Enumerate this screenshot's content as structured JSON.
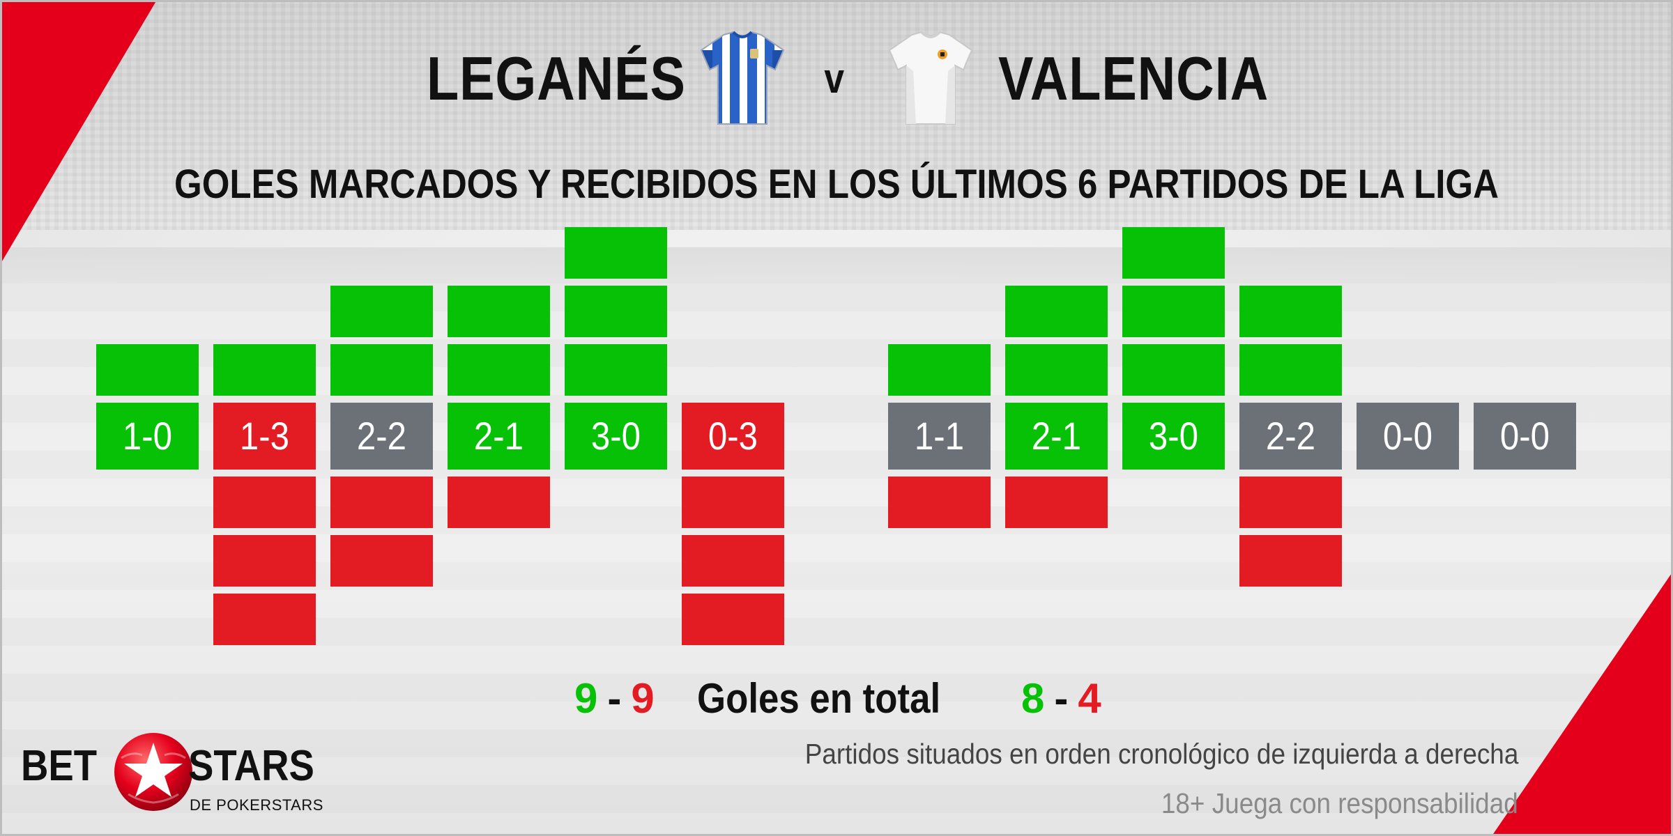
{
  "header": {
    "home_team": "LEGANÉS",
    "away_team": "VALENCIA",
    "vs": "v",
    "subtitle": "GOLES MARCADOS Y RECIBIDOS EN LOS ÚLTIMOS 6 PARTIDOS DE LA LIGA"
  },
  "colors": {
    "scored": "#06c106",
    "conceded": "#e31b23",
    "draw": "#6b7176",
    "accent": "#e4001b"
  },
  "chart_data": [
    {
      "type": "bar",
      "team": "LEGANÉS",
      "categories": [
        "1-0",
        "1-3",
        "2-2",
        "2-1",
        "3-0",
        "0-3"
      ],
      "series": [
        {
          "key": "scored",
          "values": [
            1,
            1,
            2,
            2,
            3,
            0
          ]
        },
        {
          "key": "conceded",
          "values": [
            0,
            3,
            2,
            1,
            0,
            3
          ]
        }
      ],
      "results": [
        "win",
        "loss",
        "draw",
        "win",
        "win",
        "loss"
      ],
      "totals": {
        "scored": "9",
        "conceded": "9"
      }
    },
    {
      "type": "bar",
      "team": "VALENCIA",
      "categories": [
        "1-1",
        "2-1",
        "3-0",
        "2-2",
        "0-0",
        "0-0"
      ],
      "series": [
        {
          "key": "scored",
          "values": [
            1,
            2,
            3,
            2,
            0,
            0
          ]
        },
        {
          "key": "conceded",
          "values": [
            1,
            1,
            0,
            2,
            0,
            0
          ]
        }
      ],
      "results": [
        "draw",
        "win",
        "win",
        "draw",
        "draw",
        "draw"
      ],
      "totals": {
        "scored": "8",
        "conceded": "4"
      }
    }
  ],
  "footer": {
    "totals_label": "Goles en total",
    "dash": "-",
    "note": "Partidos situados en orden cronológico de izquierda a derecha",
    "responsibility": "18+ Juega con responsabilidad"
  },
  "logo": {
    "bet": "BET",
    "stars": "STARS",
    "sub": "DE POKERSTARS"
  },
  "icons": {
    "home_shirt": "leganes-shirt-icon",
    "away_shirt": "valencia-shirt-icon",
    "logo_ball": "soccer-ball-star-icon"
  }
}
